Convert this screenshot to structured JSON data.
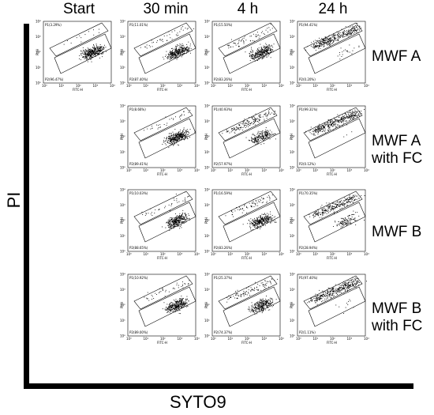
{
  "columns": [
    "Start",
    "30 min",
    "4 h",
    "24 h"
  ],
  "rows": [
    {
      "label_lines": [
        "MWF A"
      ]
    },
    {
      "label_lines": [
        "MWF A",
        "with FC"
      ]
    },
    {
      "label_lines": [
        "MWF B"
      ]
    },
    {
      "label_lines": [
        "MWF B",
        "with FC"
      ]
    }
  ],
  "axis": {
    "y_label": "PI",
    "x_label": "SYTO9"
  },
  "panel_axis": {
    "x_label": "FITC-H",
    "y_label": "PI-H",
    "ticks": [
      "10⁰",
      "10¹",
      "10²",
      "10³",
      "10⁴"
    ]
  },
  "chart_data": {
    "type": "scatter",
    "title": "",
    "xlabel": "SYTO9",
    "ylabel": "PI",
    "grid": false,
    "panels": [
      {
        "row": "MWF A",
        "column": "Start",
        "P1": "P1(3.29%)",
        "P2": "P2(96.47%)",
        "p1_fraction": 0.0329
      },
      {
        "row": "MWF A",
        "column": "30 min",
        "P1": "P1(11.01%)",
        "P2": "P2(87.40%)",
        "p1_fraction": 0.1101
      },
      {
        "row": "MWF A",
        "column": "4 h",
        "P1": "P1(15.50%)",
        "P2": "P2(83.26%)",
        "p1_fraction": 0.155
      },
      {
        "row": "MWF A",
        "column": "24 h",
        "P1": "P1(94.41%)",
        "P2": "P2(0.20%)",
        "p1_fraction": 0.9441
      },
      {
        "row": "MWF A with FC",
        "column": "30 min",
        "P1": "P1(8.66%)",
        "P2": "P2(89.41%)",
        "p1_fraction": 0.0866
      },
      {
        "row": "MWF A with FC",
        "column": "4 h",
        "P1": "P1(40.93%)",
        "P2": "P2(57.97%)",
        "p1_fraction": 0.4093
      },
      {
        "row": "MWF A with FC",
        "column": "24 h",
        "P1": "P1(99.31%)",
        "P2": "P2(0.12%)",
        "p1_fraction": 0.9931
      },
      {
        "row": "MWF B",
        "column": "30 min",
        "P1": "P1(10.03%)",
        "P2": "P2(88.65%)",
        "p1_fraction": 0.1003
      },
      {
        "row": "MWF B",
        "column": "4 h",
        "P1": "P1(16.59%)",
        "P2": "P2(83.26%)",
        "p1_fraction": 0.1659
      },
      {
        "row": "MWF B",
        "column": "24 h",
        "P1": "P1(70.35%)",
        "P2": "P2(28.94%)",
        "p1_fraction": 0.7035
      },
      {
        "row": "MWF B with FC",
        "column": "30 min",
        "P1": "P1(10.92%)",
        "P2": "P2(89.00%)",
        "p1_fraction": 0.1092
      },
      {
        "row": "MWF B with FC",
        "column": "4 h",
        "P1": "P1(25.37%)",
        "P2": "P2(74.37%)",
        "p1_fraction": 0.2537
      },
      {
        "row": "MWF B with FC",
        "column": "24 h",
        "P1": "P1(97.40%)",
        "P2": "P2(1.11%)",
        "p1_fraction": 0.974
      }
    ]
  }
}
